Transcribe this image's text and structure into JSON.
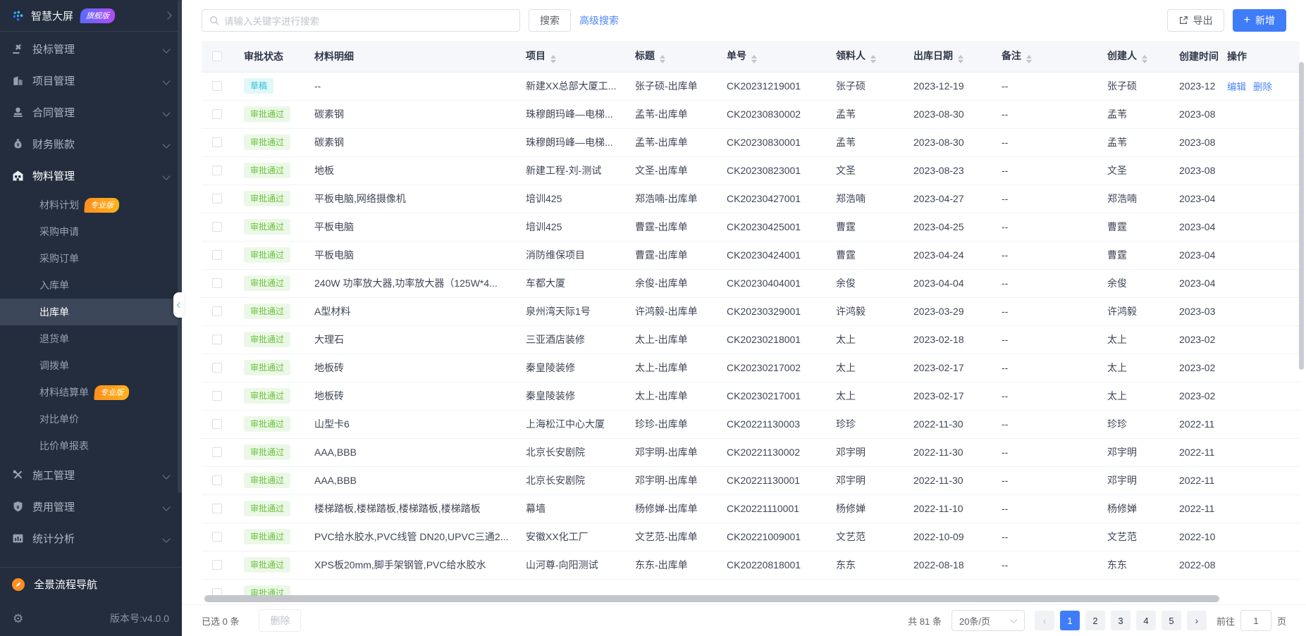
{
  "sidebar": {
    "logo": {
      "title": "智慧大屏",
      "badge": "旗舰版"
    },
    "items": [
      {
        "kind": "group",
        "name": "bidding",
        "icon": "gavel-icon",
        "label": "投标管理"
      },
      {
        "kind": "group",
        "name": "project",
        "icon": "building-icon",
        "label": "项目管理"
      },
      {
        "kind": "group",
        "name": "contract",
        "icon": "stamp-icon",
        "label": "合同管理"
      },
      {
        "kind": "group",
        "name": "finance",
        "icon": "moneybag-icon",
        "label": "财务账款"
      },
      {
        "kind": "group",
        "name": "materials",
        "icon": "warehouse-icon",
        "label": "物料管理",
        "active": true
      },
      {
        "kind": "sub",
        "name": "material-plan",
        "label": "材料计划",
        "badge": "专业版"
      },
      {
        "kind": "sub",
        "name": "purchase-request",
        "label": "采购申请"
      },
      {
        "kind": "sub",
        "name": "purchase-order",
        "label": "采购订单"
      },
      {
        "kind": "sub",
        "name": "inbound-order",
        "label": "入库单"
      },
      {
        "kind": "sub",
        "name": "outbound-order",
        "label": "出库单",
        "selected": true
      },
      {
        "kind": "sub",
        "name": "return-order",
        "label": "退货单"
      },
      {
        "kind": "sub",
        "name": "transfer-order",
        "label": "调拨单"
      },
      {
        "kind": "sub",
        "name": "material-settlement",
        "label": "材料结算单",
        "badge": "专业版"
      },
      {
        "kind": "sub",
        "name": "price-compare",
        "label": "对比单价"
      },
      {
        "kind": "sub",
        "name": "price-compare-report",
        "label": "比价单报表"
      },
      {
        "kind": "group",
        "name": "construction",
        "icon": "tools-icon",
        "label": "施工管理"
      },
      {
        "kind": "group",
        "name": "expense",
        "icon": "shield-icon",
        "label": "费用管理"
      },
      {
        "kind": "group",
        "name": "statistics",
        "icon": "chart-icon",
        "label": "统计分析"
      }
    ],
    "quick_nav": "全景流程导航",
    "version": "版本号:v4.0.0"
  },
  "topbar": {
    "search_placeholder": "请输入关键字进行搜索",
    "search_button": "搜索",
    "advanced_search": "高级搜索",
    "export_button": "导出",
    "add_button": "新增"
  },
  "table": {
    "columns": [
      {
        "label": "审批状态",
        "sortable": false
      },
      {
        "label": "材料明细",
        "sortable": false
      },
      {
        "label": "项目",
        "sortable": true
      },
      {
        "label": "标题",
        "sortable": true
      },
      {
        "label": "单号",
        "sortable": true
      },
      {
        "label": "领料人",
        "sortable": true
      },
      {
        "label": "出库日期",
        "sortable": true
      },
      {
        "label": "备注",
        "sortable": true
      },
      {
        "label": "创建人",
        "sortable": true
      },
      {
        "label": "创建时间",
        "sortable": false
      },
      {
        "label": "操作",
        "sortable": false
      }
    ],
    "status_styles": {
      "草稿": {
        "bg": "#e1f7fa",
        "color": "#2fc1d4"
      },
      "审批通过": {
        "bg": "#ecf8e7",
        "color": "#67c23a"
      }
    },
    "row_actions": [
      "编辑",
      "删除"
    ],
    "rows": [
      {
        "status": "草稿",
        "material": "--",
        "project": "新建XX总部大厦工...",
        "title": "张子硕-出库单",
        "code": "CK20231219001",
        "picker": "张子硕",
        "date": "2023-12-19",
        "note": "--",
        "creator": "张子硕",
        "ctime": "2023-12",
        "actions": true
      },
      {
        "status": "审批通过",
        "material": "碳素钢",
        "project": "珠穆朗玛峰—电梯...",
        "title": "孟苇-出库单",
        "code": "CK20230830002",
        "picker": "孟苇",
        "date": "2023-08-30",
        "note": "--",
        "creator": "孟苇",
        "ctime": "2023-08"
      },
      {
        "status": "审批通过",
        "material": "碳素钢",
        "project": "珠穆朗玛峰—电梯...",
        "title": "孟苇-出库单",
        "code": "CK20230830001",
        "picker": "孟苇",
        "date": "2023-08-30",
        "note": "--",
        "creator": "孟苇",
        "ctime": "2023-08"
      },
      {
        "status": "审批通过",
        "material": "地板",
        "project": "新建工程-刘-测试",
        "title": "文圣-出库单",
        "code": "CK20230823001",
        "picker": "文圣",
        "date": "2023-08-23",
        "note": "--",
        "creator": "文圣",
        "ctime": "2023-08"
      },
      {
        "status": "审批通过",
        "material": "平板电脑,网络摄像机",
        "project": "培训425",
        "title": "郑浩喃-出库单",
        "code": "CK20230427001",
        "picker": "郑浩喃",
        "date": "2023-04-27",
        "note": "--",
        "creator": "郑浩喃",
        "ctime": "2023-04"
      },
      {
        "status": "审批通过",
        "material": "平板电脑",
        "project": "培训425",
        "title": "曹霆-出库单",
        "code": "CK20230425001",
        "picker": "曹霆",
        "date": "2023-04-25",
        "note": "--",
        "creator": "曹霆",
        "ctime": "2023-04"
      },
      {
        "status": "审批通过",
        "material": "平板电脑",
        "project": "消防维保项目",
        "title": "曹霆-出库单",
        "code": "CK20230424001",
        "picker": "曹霆",
        "date": "2023-04-24",
        "note": "--",
        "creator": "曹霆",
        "ctime": "2023-04"
      },
      {
        "status": "审批通过",
        "material": "240W 功率放大器,功率放大器（125W*4...",
        "project": "车都大厦",
        "title": "余俊-出库单",
        "code": "CK20230404001",
        "picker": "余俊",
        "date": "2023-04-04",
        "note": "--",
        "creator": "余俊",
        "ctime": "2023-04"
      },
      {
        "status": "审批通过",
        "material": "A型材料",
        "project": "泉州湾天际1号",
        "title": "许鸿毅-出库单",
        "code": "CK20230329001",
        "picker": "许鸿毅",
        "date": "2023-03-29",
        "note": "--",
        "creator": "许鸿毅",
        "ctime": "2023-03"
      },
      {
        "status": "审批通过",
        "material": "大理石",
        "project": "三亚酒店装修",
        "title": "太上-出库单",
        "code": "CK20230218001",
        "picker": "太上",
        "date": "2023-02-18",
        "note": "--",
        "creator": "太上",
        "ctime": "2023-02"
      },
      {
        "status": "审批通过",
        "material": "地板砖",
        "project": "秦皇陵装修",
        "title": "太上-出库单",
        "code": "CK20230217002",
        "picker": "太上",
        "date": "2023-02-17",
        "note": "--",
        "creator": "太上",
        "ctime": "2023-02"
      },
      {
        "status": "审批通过",
        "material": "地板砖",
        "project": "秦皇陵装修",
        "title": "太上-出库单",
        "code": "CK20230217001",
        "picker": "太上",
        "date": "2023-02-17",
        "note": "--",
        "creator": "太上",
        "ctime": "2023-02"
      },
      {
        "status": "审批通过",
        "material": "山型卡6",
        "project": "上海松江中心大厦",
        "title": "珍珍-出库单",
        "code": "CK20221130003",
        "picker": "珍珍",
        "date": "2022-11-30",
        "note": "--",
        "creator": "珍珍",
        "ctime": "2022-11"
      },
      {
        "status": "审批通过",
        "material": "AAA,BBB",
        "project": "北京长安剧院",
        "title": "邓宇明-出库单",
        "code": "CK20221130002",
        "picker": "邓宇明",
        "date": "2022-11-30",
        "note": "--",
        "creator": "邓宇明",
        "ctime": "2022-11"
      },
      {
        "status": "审批通过",
        "material": "AAA,BBB",
        "project": "北京长安剧院",
        "title": "邓宇明-出库单",
        "code": "CK20221130001",
        "picker": "邓宇明",
        "date": "2022-11-30",
        "note": "--",
        "creator": "邓宇明",
        "ctime": "2022-11"
      },
      {
        "status": "审批通过",
        "material": "楼梯踏板,楼梯踏板,楼梯踏板,楼梯踏板",
        "project": "幕墙",
        "title": "杨修婵-出库单",
        "code": "CK20221110001",
        "picker": "杨修婵",
        "date": "2022-11-10",
        "note": "--",
        "creator": "杨修婵",
        "ctime": "2022-11"
      },
      {
        "status": "审批通过",
        "material": "PVC给水胶水,PVC线管 DN20,UPVC三通2...",
        "project": "安徽XX化工厂",
        "title": "文艺范-出库单",
        "code": "CK20221009001",
        "picker": "文艺范",
        "date": "2022-10-09",
        "note": "--",
        "creator": "文艺范",
        "ctime": "2022-10"
      },
      {
        "status": "审批通过",
        "material": "XPS板20mm,脚手架钢管,PVC给水胶水",
        "project": "山河尊-向阳测试",
        "title": "东东-出库单",
        "code": "CK20220818001",
        "picker": "东东",
        "date": "2022-08-18",
        "note": "--",
        "creator": "东东",
        "ctime": "2022-08"
      },
      {
        "status": "审批通过",
        "material": "",
        "project": "",
        "title": "",
        "code": "",
        "picker": "",
        "date": "",
        "note": "",
        "creator": "",
        "ctime": "",
        "partial": true
      }
    ]
  },
  "footer": {
    "selected_text": "已选 0 条",
    "delete_button": "删除",
    "total_text": "共 81 条",
    "page_size": "20条/页",
    "pages": [
      "1",
      "2",
      "3",
      "4",
      "5"
    ],
    "current_page": "1",
    "goto_label": "前往",
    "goto_value": "1",
    "goto_unit": "页"
  },
  "colors": {
    "accent": "#3f7cf8",
    "link": "#4c86f9",
    "sidebar_bg": "#232d3d",
    "draft_color": "#2fc1d4",
    "approved_color": "#67c23a"
  }
}
